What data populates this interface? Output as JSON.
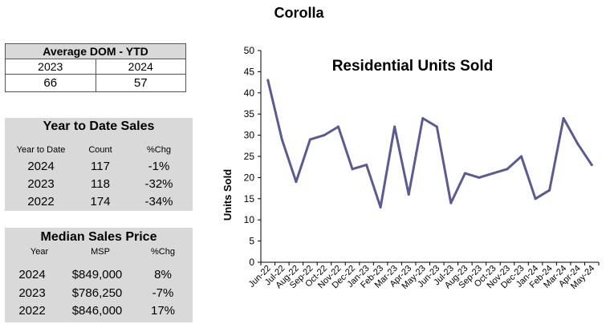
{
  "page_title": "Corolla",
  "dom": {
    "title": "Average DOM - YTD",
    "years": [
      "2023",
      "2024"
    ],
    "values": [
      "66",
      "57"
    ]
  },
  "ytd_sales": {
    "title": "Year to Date Sales",
    "headers": [
      "Year to Date",
      "Count",
      "%Chg"
    ],
    "rows": [
      [
        "2024",
        "117",
        "-1%"
      ],
      [
        "2023",
        "118",
        "-32%"
      ],
      [
        "2022",
        "174",
        "-34%"
      ]
    ]
  },
  "median_price": {
    "title": "Median Sales Price",
    "headers": [
      "Year",
      "MSP",
      "%Chg"
    ],
    "rows": [
      [
        "2024",
        "$849,000",
        "8%"
      ],
      [
        "2023",
        "$786,250",
        "-7%"
      ],
      [
        "2022",
        "$846,000",
        "17%"
      ]
    ]
  },
  "chart_data": {
    "type": "line",
    "title": "Residential Units Sold",
    "xlabel": "",
    "ylabel": "Units Sold",
    "ylim": [
      0,
      50
    ],
    "yticks": [
      0,
      5,
      10,
      15,
      20,
      25,
      30,
      35,
      40,
      45,
      50
    ],
    "grid": false,
    "legend": "none",
    "line_color": "#5b5b8f",
    "categories": [
      "Jun-22",
      "Jul-22",
      "Aug-22",
      "Sep-22",
      "Oct-22",
      "Nov-22",
      "Dec-22",
      "Jan-23",
      "Feb-23",
      "Mar-23",
      "Apr-23",
      "May-23",
      "Jun-23",
      "Jul-23",
      "Aug-23",
      "Sep-23",
      "Oct-23",
      "Nov-23",
      "Dec-23",
      "Jan-24",
      "Feb-24",
      "Mar-24",
      "Apr-24",
      "May-24"
    ],
    "values": [
      43,
      29,
      19,
      29,
      30,
      32,
      22,
      23,
      13,
      32,
      16,
      34,
      32,
      14,
      21,
      20,
      21,
      22,
      25,
      15,
      17,
      34,
      28,
      23
    ]
  }
}
